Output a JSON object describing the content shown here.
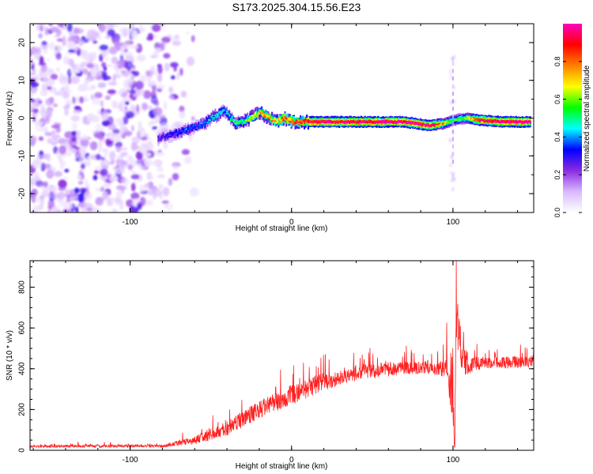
{
  "figure": {
    "title": "S173.2025.304.15.56.E23"
  },
  "chart_data": [
    {
      "type": "heatmap",
      "title": "S173.2025.304.15.56.E23",
      "xlabel": "Height of straight line (km)",
      "ylabel": "Frequency (Hz)",
      "xlim": [
        -162,
        150
      ],
      "ylim": [
        -25,
        25
      ],
      "x_ticks": [
        -100,
        0,
        100
      ],
      "x_tick_labels": [
        "-100",
        "0",
        "100"
      ],
      "y_ticks": [
        -20,
        -10,
        0,
        10,
        20
      ],
      "y_tick_labels": [
        "-20",
        "-10",
        "0",
        "10",
        "20"
      ],
      "noise_region_x": [
        -162,
        -60
      ],
      "ridge": [
        {
          "x": -83,
          "freq": -5.5,
          "amp": 0.25
        },
        {
          "x": -75,
          "freq": -4.5,
          "amp": 0.3
        },
        {
          "x": -65,
          "freq": -3.0,
          "amp": 0.35
        },
        {
          "x": -55,
          "freq": -1.5,
          "amp": 0.35
        },
        {
          "x": -48,
          "freq": 0.5,
          "amp": 0.45
        },
        {
          "x": -42,
          "freq": 2.0,
          "amp": 0.4
        },
        {
          "x": -35,
          "freq": -1.5,
          "amp": 0.5
        },
        {
          "x": -28,
          "freq": -0.5,
          "amp": 0.55
        },
        {
          "x": -20,
          "freq": 1.5,
          "amp": 0.7
        },
        {
          "x": -10,
          "freq": -1.0,
          "amp": 0.7
        },
        {
          "x": -5,
          "freq": 0.0,
          "amp": 0.8
        },
        {
          "x": 0,
          "freq": -1.0,
          "amp": 0.75
        },
        {
          "x": 10,
          "freq": -1.0,
          "amp": 0.9
        },
        {
          "x": 40,
          "freq": -1.0,
          "amp": 0.95
        },
        {
          "x": 70,
          "freq": -1.0,
          "amp": 0.95
        },
        {
          "x": 85,
          "freq": -2.0,
          "amp": 0.9
        },
        {
          "x": 93,
          "freq": -1.5,
          "amp": 0.7
        },
        {
          "x": 100,
          "freq": -0.5,
          "amp": 0.5
        },
        {
          "x": 108,
          "freq": 0.0,
          "amp": 0.6
        },
        {
          "x": 115,
          "freq": -0.5,
          "amp": 0.85
        },
        {
          "x": 130,
          "freq": -1.0,
          "amp": 0.95
        },
        {
          "x": 148,
          "freq": -1.0,
          "amp": 0.95
        }
      ],
      "colorbar": {
        "label": "Normalized spectral amplitude",
        "range": [
          0.0,
          1.0
        ],
        "ticks": [
          0.0,
          0.2,
          0.4,
          0.6,
          0.8
        ],
        "tick_labels": [
          "0.0",
          "0.2",
          "0.4",
          "0.6",
          "0.8"
        ],
        "colors": [
          "#ffffff",
          "#d8b8ff",
          "#8a2be2",
          "#0000ff",
          "#00ffff",
          "#00ff00",
          "#ffff00",
          "#ff8000",
          "#ff0000",
          "#ff00c0"
        ]
      }
    },
    {
      "type": "line",
      "xlabel": "Height of straight line (km)",
      "ylabel": "SNR (10 * v/v)",
      "xlim": [
        -162,
        150
      ],
      "ylim": [
        0,
        930
      ],
      "x_ticks": [
        -100,
        0,
        100
      ],
      "x_tick_labels": [
        "-100",
        "0",
        "100"
      ],
      "y_ticks": [
        0,
        200,
        400,
        600,
        800
      ],
      "y_tick_labels": [
        "0",
        "200",
        "400",
        "600",
        "800"
      ],
      "series": [
        {
          "name": "SNR",
          "color": "#ff2020",
          "envelope": [
            {
              "x": -162,
              "base": 18,
              "spread": 12
            },
            {
              "x": -80,
              "base": 20,
              "spread": 14
            },
            {
              "x": -60,
              "base": 45,
              "spread": 40
            },
            {
              "x": -40,
              "base": 100,
              "spread": 70
            },
            {
              "x": -20,
              "base": 190,
              "spread": 90
            },
            {
              "x": 0,
              "base": 260,
              "spread": 100
            },
            {
              "x": 20,
              "base": 330,
              "spread": 90
            },
            {
              "x": 40,
              "base": 370,
              "spread": 80
            },
            {
              "x": 60,
              "base": 390,
              "spread": 70
            },
            {
              "x": 80,
              "base": 400,
              "spread": 60
            },
            {
              "x": 95,
              "base": 390,
              "spread": 80
            },
            {
              "x": 100,
              "base": 300,
              "spread": 400
            },
            {
              "x": 101,
              "base": 40,
              "spread": 10
            },
            {
              "x": 102,
              "base": 650,
              "spread": 280
            },
            {
              "x": 106,
              "base": 420,
              "spread": 150
            },
            {
              "x": 115,
              "base": 420,
              "spread": 60
            },
            {
              "x": 150,
              "base": 430,
              "spread": 60
            }
          ],
          "peak": {
            "x": 102,
            "y": 930
          },
          "minimum": {
            "x": 101,
            "y": 10
          }
        }
      ]
    }
  ]
}
